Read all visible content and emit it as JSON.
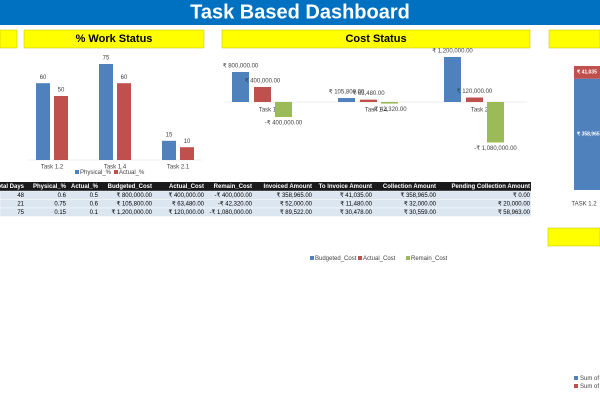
{
  "header": {
    "title": "Task Based Dashboard"
  },
  "chart_data": [
    {
      "type": "bar",
      "title": "% Work Status",
      "categories": [
        "Task 1.2",
        "Task 1.4",
        "Task 2.1"
      ],
      "series": [
        {
          "name": "Physical_%",
          "color": "#4f81bd",
          "values": [
            60,
            75,
            15
          ]
        },
        {
          "name": "Actual_%",
          "color": "#c0504d",
          "values": [
            50,
            60,
            10
          ]
        }
      ]
    },
    {
      "type": "bar",
      "title": "Cost Status",
      "categories": [
        "Task 1.2",
        "Task 1.4",
        "Task 2.1"
      ],
      "series": [
        {
          "name": "Budgeted_Cost",
          "color": "#4f81bd",
          "values": [
            800000,
            105800,
            1200000
          ],
          "value_labels": [
            "₹ 800,000.00",
            "₹ 105,800.00",
            "₹ 1,200,000.00"
          ]
        },
        {
          "name": "Actual_Cost",
          "color": "#c0504d",
          "values": [
            400000,
            63480,
            120000
          ],
          "value_labels": [
            "₹ 400,000.00",
            "₹ 63,480.00",
            "₹ 120,000.00"
          ]
        },
        {
          "name": "Remain_Cost",
          "color": "#9bbb59",
          "values": [
            -400000,
            -42320,
            -1080000
          ],
          "value_labels": [
            "-₹ 400,000.00",
            "-₹ 42,320.00",
            "-₹ 1,080,000.00"
          ]
        }
      ]
    },
    {
      "type": "stacked_bar",
      "categories": [
        "TASK 1.2"
      ],
      "series": [
        {
          "name": "Sum of I",
          "color": "#4f81bd",
          "values": [
            358965
          ],
          "value_labels": [
            "₹ 358,965"
          ]
        },
        {
          "name": "Sum of I",
          "color": "#c0504d",
          "values": [
            41035
          ],
          "value_labels": [
            "₹ 41,035"
          ]
        }
      ]
    }
  ],
  "table": {
    "columns": [
      "Total Days",
      "Physical_%",
      "Actual_%",
      "Budgeted_Cost",
      "Actual_Cost",
      "Remain_Cost",
      "Invoiced Amount",
      "To Invoice Amount",
      "Collection Amount",
      "Pending Collection Amount"
    ],
    "rows": [
      [
        "48",
        "0.6",
        "0.5",
        "₹ 800,000.00",
        "₹ 400,000.00",
        "-₹ 400,000.00",
        "₹ 358,965.00",
        "₹ 41,035.00",
        "₹ 358,965.00",
        "₹ 0.00"
      ],
      [
        "21",
        "0.75",
        "0.6",
        "₹ 105,800.00",
        "₹ 63,480.00",
        "-₹ 42,320.00",
        "₹ 52,000.00",
        "₹ 11,480.00",
        "₹ 32,000.00",
        "₹ 20,000.00"
      ],
      [
        "75",
        "0.15",
        "0.1",
        "₹ 1,200,000.00",
        "₹ 120,000.00",
        "-₹ 1,080,000.00",
        "₹ 89,522.00",
        "₹ 30,478.00",
        "₹ 30,559.00",
        "₹ 58,963.00"
      ]
    ]
  }
}
